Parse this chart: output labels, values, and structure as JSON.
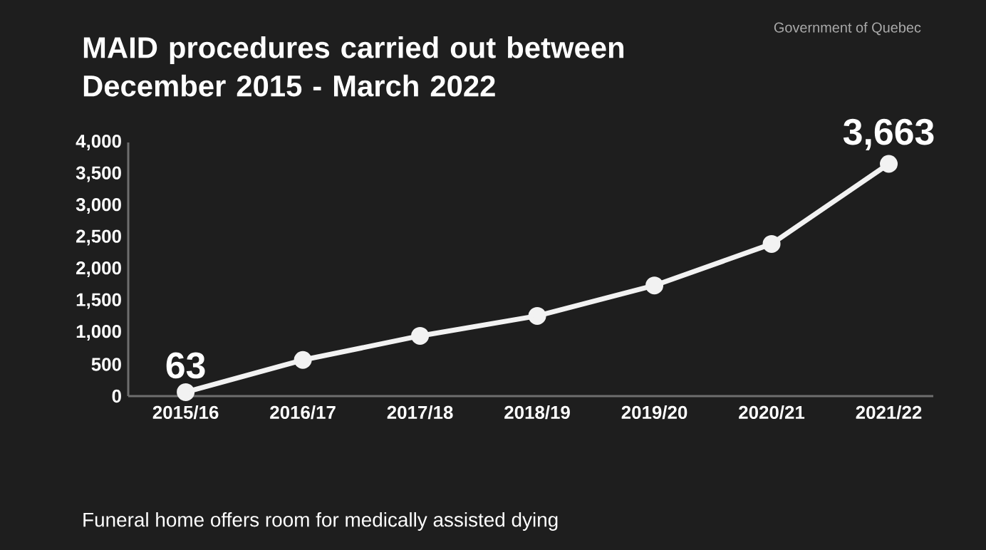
{
  "chart_data": {
    "type": "line",
    "title": "MAID procedures carried out between December 2015 - March 2022",
    "categories": [
      "2015/16",
      "2016/17",
      "2017/18",
      "2018/19",
      "2019/20",
      "2020/21",
      "2021/22"
    ],
    "series": [
      {
        "color": "#f2f2f2",
        "values": [
          63,
          570,
          950,
          1265,
          1745,
          2400,
          3663
        ],
        "value_labels": [
          "63",
          null,
          null,
          null,
          null,
          null,
          "3,663"
        ]
      }
    ],
    "ylim": [
      0,
      4000
    ],
    "yticks": [
      0,
      500,
      {
        "value": 1000,
        "label": "1,000"
      },
      {
        "value": 1500,
        "label": "1,500"
      },
      {
        "value": 2000,
        "label": "2,000"
      },
      {
        "value": 2500,
        "label": "2,500"
      },
      {
        "value": 3000,
        "label": "3,000"
      },
      {
        "value": 3500,
        "label": "3,500"
      },
      {
        "value": 4000,
        "label": "4,000"
      }
    ],
    "marker": "circle",
    "line_style": "solid",
    "grid": false,
    "annotations": [
      "Government of Quebec",
      "Funeral home offers room for medically assisted dying"
    ]
  }
}
